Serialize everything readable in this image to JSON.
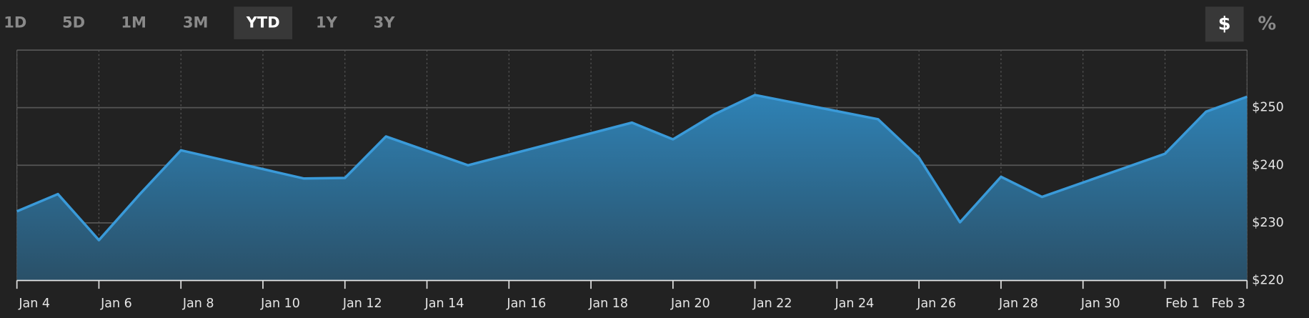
{
  "range_buttons": {
    "options": [
      "1D",
      "5D",
      "1M",
      "3M",
      "YTD",
      "1Y",
      "3Y"
    ],
    "selected": 4
  },
  "unit_buttons": {
    "options": [
      "$",
      "%"
    ],
    "selected": 0
  },
  "chart_data": {
    "type": "area",
    "color": "#3a9ad9",
    "x": [
      4,
      5,
      6,
      7,
      8,
      11,
      12,
      13,
      15,
      19,
      20,
      21,
      22,
      25,
      26,
      27,
      28,
      29,
      32,
      33,
      34
    ],
    "values": [
      232,
      235,
      227,
      235,
      242.6,
      237.7,
      237.8,
      245,
      240,
      247.4,
      244.5,
      248.8,
      252.2,
      248,
      241.3,
      230.1,
      238,
      234.5,
      242,
      249.3,
      251.9
    ],
    "xlim": [
      4,
      34
    ],
    "xticks": [
      {
        "value": 4,
        "label": "Jan 4"
      },
      {
        "value": 6,
        "label": "Jan 6"
      },
      {
        "value": 8,
        "label": "Jan 8"
      },
      {
        "value": 10,
        "label": "Jan 10"
      },
      {
        "value": 12,
        "label": "Jan 12"
      },
      {
        "value": 14,
        "label": "Jan 14"
      },
      {
        "value": 16,
        "label": "Jan 16"
      },
      {
        "value": 18,
        "label": "Jan 18"
      },
      {
        "value": 20,
        "label": "Jan 20"
      },
      {
        "value": 22,
        "label": "Jan 22"
      },
      {
        "value": 24,
        "label": "Jan 24"
      },
      {
        "value": 26,
        "label": "Jan 26"
      },
      {
        "value": 28,
        "label": "Jan 28"
      },
      {
        "value": 30,
        "label": "Jan 30"
      },
      {
        "value": 32,
        "label": "Feb 1"
      },
      {
        "value": 34,
        "label": "Feb 3"
      }
    ],
    "ylim": [
      220,
      260
    ],
    "yticks": [
      {
        "value": 220,
        "label": "$220"
      },
      {
        "value": 230,
        "label": "$230"
      },
      {
        "value": 240,
        "label": "$240"
      },
      {
        "value": 250,
        "label": "$250"
      }
    ],
    "grid": true
  }
}
